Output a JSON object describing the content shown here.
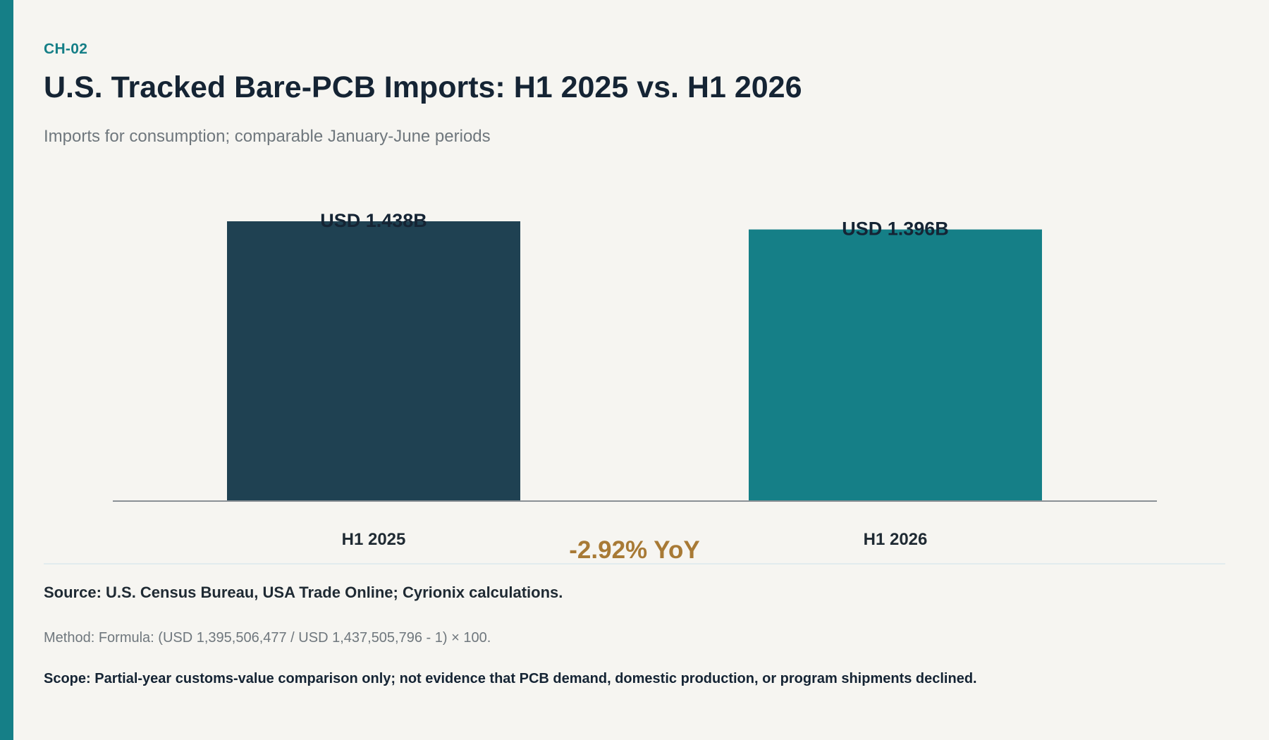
{
  "header": {
    "chart_id": "CH-02",
    "title": "U.S. Tracked Bare-PCB Imports: H1 2025 vs. H1 2026",
    "subtitle": "Imports for consumption; comparable January-June periods"
  },
  "chart_data": {
    "type": "bar",
    "categories": [
      "H1 2025",
      "H1 2026"
    ],
    "values": [
      1.438,
      1.396
    ],
    "value_labels": [
      "USD 1.438B",
      "USD 1.396B"
    ],
    "colors": [
      "#1f4152",
      "#157f87"
    ],
    "annotation": "-2.92% YoY",
    "annotation_color": "#a87a35",
    "ylim": [
      0,
      1.438
    ],
    "xlabel": "",
    "ylabel": "",
    "grid": false,
    "legend": "none"
  },
  "footer": {
    "source": "Source: U.S. Census Bureau, USA Trade Online; Cyrionix calculations.",
    "method": "Method: Formula: (USD 1,395,506,477 / USD 1,437,505,796 - 1) × 100.",
    "scope": "Scope: Partial-year customs-value comparison only; not evidence that PCB demand, domestic production, or program shipments declined."
  },
  "colors": {
    "accent": "#157f87",
    "background": "#f6f5f1",
    "text_dark": "#152434",
    "text_muted": "#6f777d"
  }
}
